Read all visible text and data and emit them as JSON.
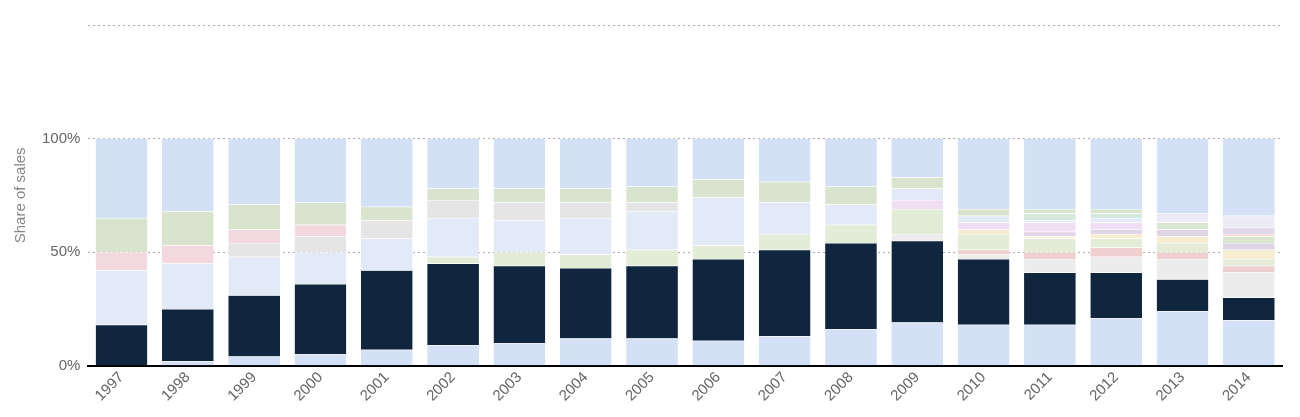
{
  "chart_data": {
    "type": "bar",
    "stacked": true,
    "ylabel": "Share of sales",
    "categories": [
      "1997",
      "1998",
      "1999",
      "2000",
      "2001",
      "2002",
      "2003",
      "2004",
      "2005",
      "2006",
      "2007",
      "2008",
      "2009",
      "2010",
      "2011",
      "2012",
      "2013",
      "2014"
    ],
    "ylim": [
      0,
      150
    ],
    "yticks": [
      {
        "value": 0,
        "label": "0%"
      },
      {
        "value": 50,
        "label": "50%"
      },
      {
        "value": 100,
        "label": "100%"
      },
      {
        "value": 150,
        "label": null
      }
    ],
    "grid": "y",
    "series": [
      {
        "color": "#d3e0f6",
        "values": [
          null,
          2,
          4,
          5,
          7,
          9,
          10,
          12,
          12,
          11,
          13,
          16,
          19,
          18,
          18,
          21,
          24,
          20
        ]
      },
      {
        "color": "#10263e",
        "values": [
          18,
          23,
          27,
          31,
          35,
          36,
          34,
          31,
          32,
          36,
          38,
          38,
          36,
          29,
          23,
          20,
          14,
          10
        ]
      },
      {
        "color": "#ececec",
        "values": [
          null,
          null,
          null,
          null,
          null,
          null,
          null,
          null,
          null,
          null,
          null,
          null,
          3,
          2,
          6,
          7,
          9,
          11
        ]
      },
      {
        "color": "#f0cfcf",
        "values": [
          null,
          null,
          null,
          null,
          null,
          null,
          null,
          null,
          null,
          null,
          null,
          null,
          null,
          2,
          3,
          4,
          3,
          3
        ]
      },
      {
        "color": "#e3ecd6",
        "values": [
          null,
          null,
          null,
          null,
          null,
          3,
          6,
          6,
          7,
          6,
          7,
          8,
          11,
          7,
          6,
          4,
          4,
          3
        ]
      },
      {
        "color": "#f7edd0",
        "values": [
          null,
          null,
          null,
          null,
          null,
          null,
          null,
          null,
          null,
          null,
          null,
          null,
          null,
          2,
          1,
          2,
          3,
          4
        ]
      },
      {
        "color": "#e0d5e6",
        "values": [
          null,
          null,
          null,
          null,
          null,
          null,
          null,
          null,
          null,
          null,
          null,
          null,
          null,
          null,
          2,
          2,
          3,
          3
        ]
      },
      {
        "color": "#dbe6d0",
        "values": [
          null,
          null,
          null,
          null,
          null,
          null,
          null,
          null,
          null,
          null,
          null,
          null,
          null,
          null,
          null,
          null,
          3,
          3
        ]
      },
      {
        "color": "#f2d8cc",
        "values": [
          null,
          null,
          null,
          null,
          null,
          null,
          null,
          null,
          null,
          null,
          null,
          null,
          null,
          null,
          null,
          null,
          null,
          1
        ]
      },
      {
        "color": "#e3d8ea",
        "values": [
          null,
          null,
          null,
          null,
          null,
          null,
          null,
          null,
          null,
          null,
          null,
          null,
          null,
          null,
          null,
          null,
          null,
          3
        ]
      },
      {
        "color": "#f0def4",
        "values": [
          null,
          null,
          null,
          null,
          null,
          null,
          null,
          null,
          null,
          null,
          null,
          null,
          4,
          3,
          4,
          3,
          null,
          null
        ]
      },
      {
        "color": "#e2e9f7",
        "values": [
          24,
          20,
          17,
          14,
          14,
          17,
          14,
          16,
          17,
          21,
          14,
          9,
          5,
          3,
          1,
          2,
          null,
          null
        ]
      },
      {
        "color": "#d6e9e0",
        "values": [
          null,
          null,
          null,
          null,
          null,
          null,
          null,
          null,
          null,
          null,
          null,
          null,
          null,
          null,
          3,
          2,
          null,
          null
        ]
      },
      {
        "color": "#e5e5e5",
        "values": [
          null,
          null,
          6,
          7,
          8,
          8,
          8,
          7,
          4,
          null,
          null,
          null,
          null,
          null,
          null,
          null,
          null,
          null
        ]
      },
      {
        "color": "#f3d9df",
        "values": [
          8,
          8,
          6,
          5,
          null,
          null,
          null,
          null,
          null,
          null,
          null,
          null,
          null,
          null,
          null,
          null,
          null,
          null
        ]
      },
      {
        "color": "#d9e4cf",
        "values": [
          15,
          15,
          11,
          10,
          6,
          5,
          6,
          6,
          7,
          8,
          9,
          8,
          5,
          3,
          2,
          2,
          null,
          null
        ]
      },
      {
        "color": "#ebeaf5",
        "values": [
          null,
          null,
          null,
          null,
          null,
          null,
          null,
          null,
          null,
          null,
          null,
          null,
          null,
          null,
          null,
          null,
          4,
          5
        ]
      },
      {
        "color": "#d3e0f6",
        "values": [
          35,
          32,
          29,
          28,
          30,
          22,
          22,
          22,
          21,
          18,
          19,
          21,
          17,
          31,
          31,
          31,
          33,
          34
        ]
      }
    ]
  }
}
